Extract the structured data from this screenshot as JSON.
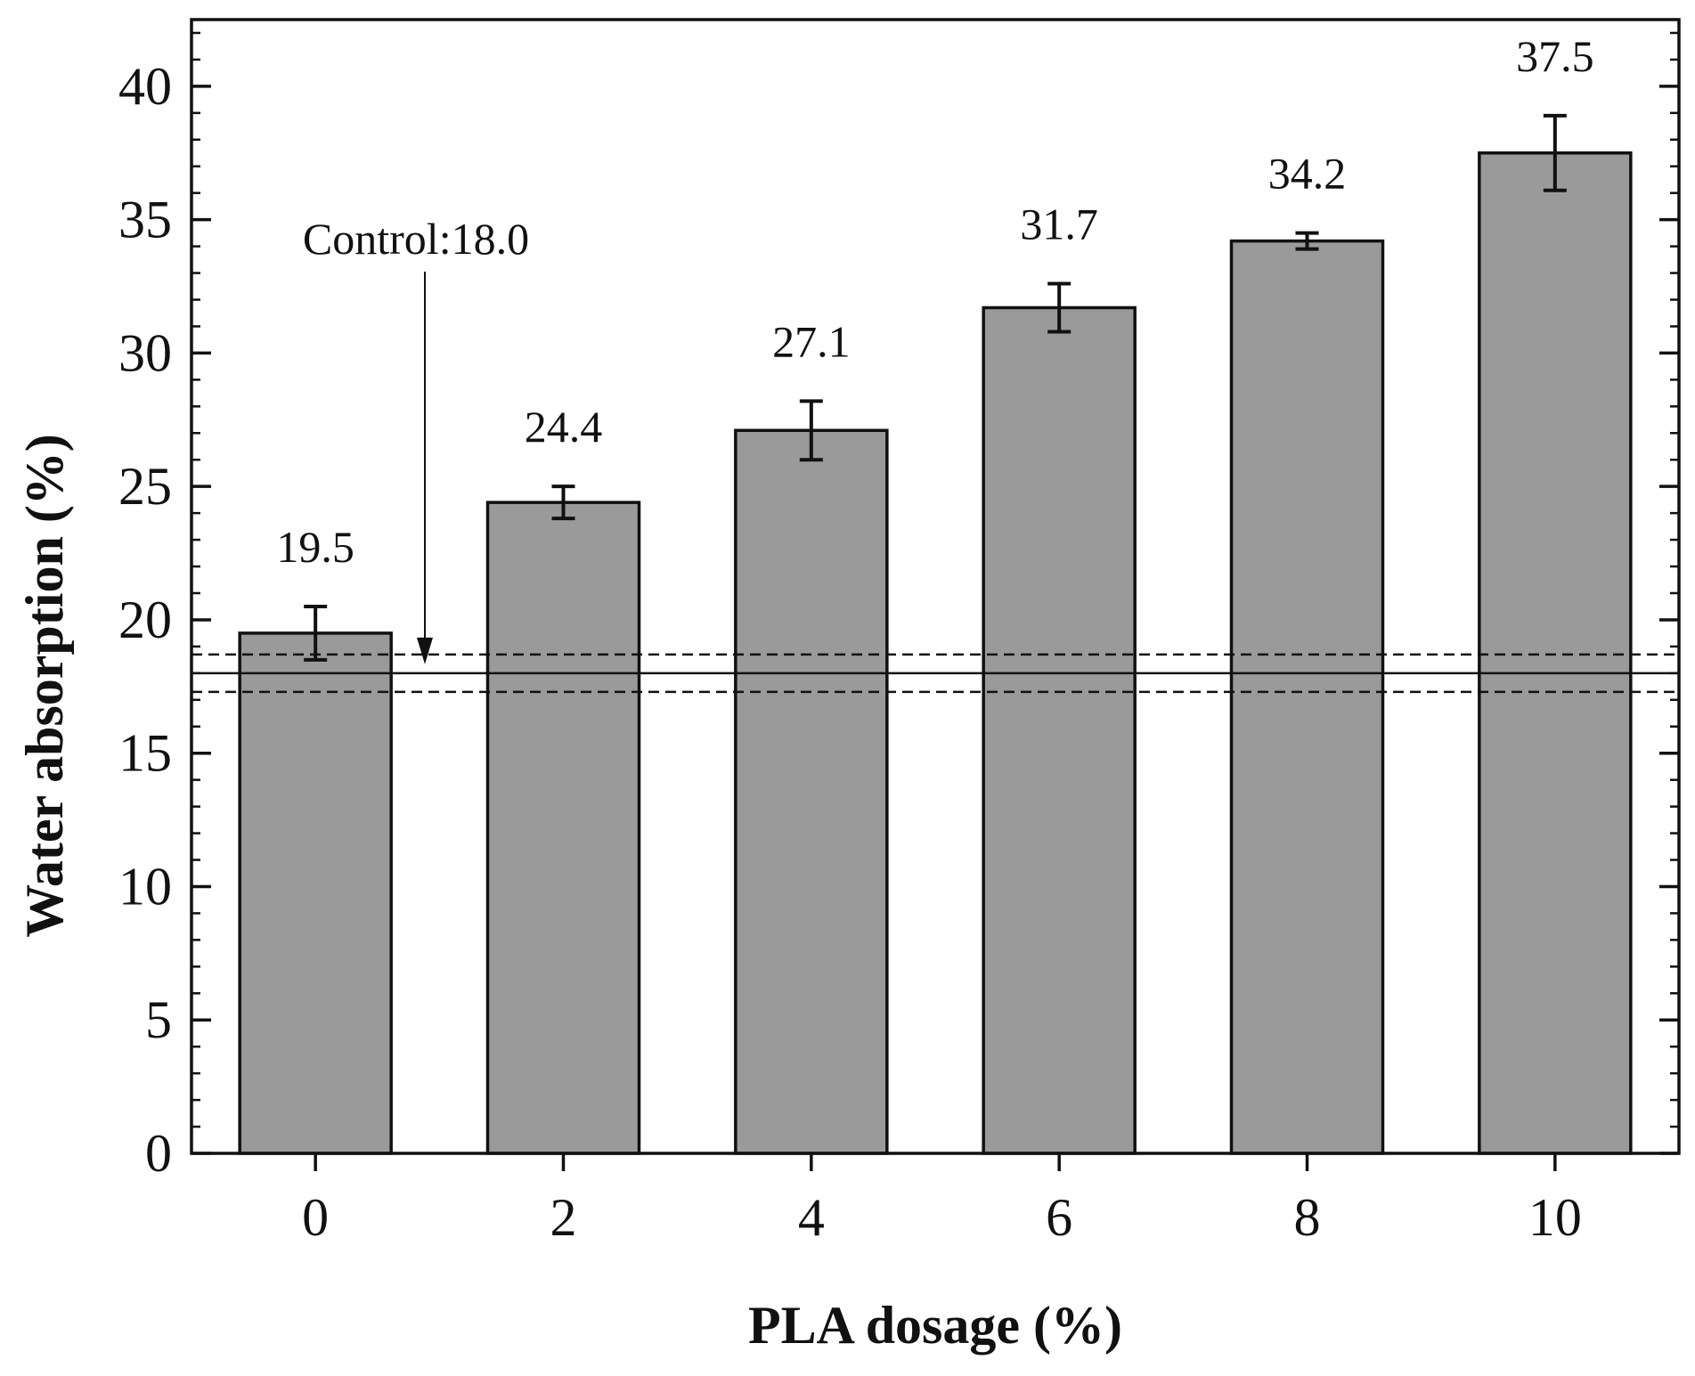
{
  "chart_data": {
    "type": "bar",
    "categories": [
      "0",
      "2",
      "4",
      "6",
      "8",
      "10"
    ],
    "x": [
      0,
      2,
      4,
      6,
      8,
      10
    ],
    "values": [
      19.5,
      24.4,
      27.1,
      31.7,
      34.2,
      37.5
    ],
    "value_labels": [
      "19.5",
      "24.4",
      "27.1",
      "31.7",
      "34.2",
      "37.5"
    ],
    "errors": [
      1.0,
      0.6,
      1.1,
      0.9,
      0.3,
      1.4
    ],
    "xlabel": "PLA dosage (%)",
    "ylabel": "Water absorption (%)",
    "xlim": [
      -1,
      11
    ],
    "ylim": [
      0,
      42.5
    ],
    "yticks": [
      0,
      5,
      10,
      15,
      20,
      25,
      30,
      35,
      40
    ],
    "ytick_labels": [
      "0",
      "5",
      "10",
      "15",
      "20",
      "25",
      "30",
      "35",
      "40"
    ],
    "xtick_labels": [
      "0",
      "2",
      "4",
      "6",
      "8",
      "10"
    ],
    "bar_color": "#9a9a9a",
    "control": {
      "label": "Control:18.0",
      "value": 18.0,
      "lower": 17.3,
      "upper": 18.7
    }
  }
}
